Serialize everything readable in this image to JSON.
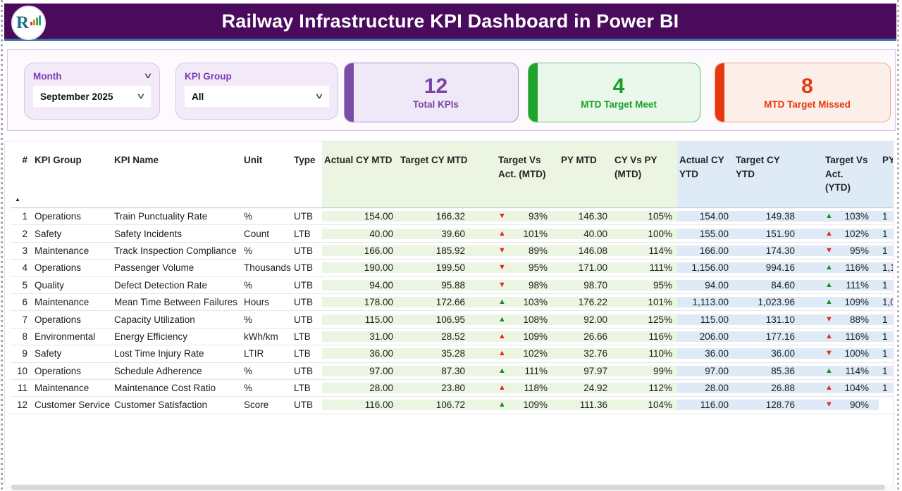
{
  "title": "Railway Infrastructure KPI Dashboard in Power BI",
  "logo": {
    "letter": "R"
  },
  "icons": {
    "sort_ascending": "▲",
    "chevron_down": "∨",
    "arrow_up": "▲",
    "arrow_down": "▼"
  },
  "colors": {
    "header_purple": "#4a0b5c",
    "accent_blue_line": "#3c6e9f",
    "slicer_label_purple": "#7a3db8",
    "card_purple": "#7a44a8",
    "card_green": "#18a124",
    "card_red": "#e8380d",
    "mtd_section_bg": "#ebf5e1",
    "ytd_section_bg": "#deebf7",
    "arrow_green": "#1d8a27",
    "arrow_red": "#e02b1d"
  },
  "filters": {
    "month": {
      "label": "Month",
      "value": "September 2025"
    },
    "kpi_group": {
      "label": "KPI Group",
      "value": "All"
    }
  },
  "cards": [
    {
      "value": "12",
      "label": "Total KPIs"
    },
    {
      "value": "4",
      "label": "MTD Target Meet"
    },
    {
      "value": "8",
      "label": "MTD Target Missed"
    }
  ],
  "table": {
    "columns": [
      "#",
      "KPI Group",
      "KPI Name",
      "Unit",
      "Type",
      "Actual CY MTD",
      "Target CY MTD",
      "Target Vs Act. (MTD)",
      "PY MTD",
      "CY Vs PY (MTD)",
      "Actual CY YTD",
      "Target CY YTD",
      "Target Vs Act. (YTD)",
      "PY"
    ],
    "rows": [
      {
        "num": "1",
        "group": "Operations",
        "name": "Train Punctuality Rate",
        "unit": "%",
        "type": "UTB",
        "actual_mtd": "154.00",
        "target_mtd": "166.32",
        "mtd_arrow": {
          "dir": "down",
          "color": "red"
        },
        "mtd_pct": "93%",
        "py_mtd": "146.30",
        "cy_vs_py": "105%",
        "actual_ytd": "154.00",
        "target_ytd": "149.38",
        "ytd_arrow": {
          "dir": "up",
          "color": "green"
        },
        "ytd_pct": "103%",
        "py_ytd_clipped": "1"
      },
      {
        "num": "2",
        "group": "Safety",
        "name": "Safety Incidents",
        "unit": "Count",
        "type": "LTB",
        "actual_mtd": "40.00",
        "target_mtd": "39.60",
        "mtd_arrow": {
          "dir": "up",
          "color": "red"
        },
        "mtd_pct": "101%",
        "py_mtd": "40.00",
        "cy_vs_py": "100%",
        "actual_ytd": "155.00",
        "target_ytd": "151.90",
        "ytd_arrow": {
          "dir": "up",
          "color": "red"
        },
        "ytd_pct": "102%",
        "py_ytd_clipped": "1"
      },
      {
        "num": "3",
        "group": "Maintenance",
        "name": "Track Inspection Compliance",
        "unit": "%",
        "type": "UTB",
        "actual_mtd": "166.00",
        "target_mtd": "185.92",
        "mtd_arrow": {
          "dir": "down",
          "color": "red"
        },
        "mtd_pct": "89%",
        "py_mtd": "146.08",
        "cy_vs_py": "114%",
        "actual_ytd": "166.00",
        "target_ytd": "174.30",
        "ytd_arrow": {
          "dir": "down",
          "color": "red"
        },
        "ytd_pct": "95%",
        "py_ytd_clipped": "1"
      },
      {
        "num": "4",
        "group": "Operations",
        "name": "Passenger Volume",
        "unit": "Thousands",
        "type": "UTB",
        "actual_mtd": "190.00",
        "target_mtd": "199.50",
        "mtd_arrow": {
          "dir": "down",
          "color": "red"
        },
        "mtd_pct": "95%",
        "py_mtd": "171.00",
        "cy_vs_py": "111%",
        "actual_ytd": "1,156.00",
        "target_ytd": "994.16",
        "ytd_arrow": {
          "dir": "up",
          "color": "green"
        },
        "ytd_pct": "116%",
        "py_ytd_clipped": "1,1"
      },
      {
        "num": "5",
        "group": "Quality",
        "name": "Defect Detection Rate",
        "unit": "%",
        "type": "UTB",
        "actual_mtd": "94.00",
        "target_mtd": "95.88",
        "mtd_arrow": {
          "dir": "down",
          "color": "red"
        },
        "mtd_pct": "98%",
        "py_mtd": "98.70",
        "cy_vs_py": "95%",
        "actual_ytd": "94.00",
        "target_ytd": "84.60",
        "ytd_arrow": {
          "dir": "up",
          "color": "green"
        },
        "ytd_pct": "111%",
        "py_ytd_clipped": "1"
      },
      {
        "num": "6",
        "group": "Maintenance",
        "name": "Mean Time Between Failures",
        "unit": "Hours",
        "type": "UTB",
        "actual_mtd": "178.00",
        "target_mtd": "172.66",
        "mtd_arrow": {
          "dir": "up",
          "color": "green"
        },
        "mtd_pct": "103%",
        "py_mtd": "176.22",
        "cy_vs_py": "101%",
        "actual_ytd": "1,113.00",
        "target_ytd": "1,023.96",
        "ytd_arrow": {
          "dir": "up",
          "color": "green"
        },
        "ytd_pct": "109%",
        "py_ytd_clipped": "1,0"
      },
      {
        "num": "7",
        "group": "Operations",
        "name": "Capacity Utilization",
        "unit": "%",
        "type": "UTB",
        "actual_mtd": "115.00",
        "target_mtd": "106.95",
        "mtd_arrow": {
          "dir": "up",
          "color": "green"
        },
        "mtd_pct": "108%",
        "py_mtd": "92.00",
        "cy_vs_py": "125%",
        "actual_ytd": "115.00",
        "target_ytd": "131.10",
        "ytd_arrow": {
          "dir": "down",
          "color": "red"
        },
        "ytd_pct": "88%",
        "py_ytd_clipped": "1"
      },
      {
        "num": "8",
        "group": "Environmental",
        "name": "Energy Efficiency",
        "unit": "kWh/km",
        "type": "LTB",
        "actual_mtd": "31.00",
        "target_mtd": "28.52",
        "mtd_arrow": {
          "dir": "up",
          "color": "red"
        },
        "mtd_pct": "109%",
        "py_mtd": "26.66",
        "cy_vs_py": "116%",
        "actual_ytd": "206.00",
        "target_ytd": "177.16",
        "ytd_arrow": {
          "dir": "up",
          "color": "red"
        },
        "ytd_pct": "116%",
        "py_ytd_clipped": "1"
      },
      {
        "num": "9",
        "group": "Safety",
        "name": "Lost Time Injury Rate",
        "unit": "LTIR",
        "type": "LTB",
        "actual_mtd": "36.00",
        "target_mtd": "35.28",
        "mtd_arrow": {
          "dir": "up",
          "color": "red"
        },
        "mtd_pct": "102%",
        "py_mtd": "32.76",
        "cy_vs_py": "110%",
        "actual_ytd": "36.00",
        "target_ytd": "36.00",
        "ytd_arrow": {
          "dir": "down",
          "color": "red"
        },
        "ytd_pct": "100%",
        "py_ytd_clipped": "1"
      },
      {
        "num": "10",
        "group": "Operations",
        "name": "Schedule Adherence",
        "unit": "%",
        "type": "UTB",
        "actual_mtd": "97.00",
        "target_mtd": "87.30",
        "mtd_arrow": {
          "dir": "up",
          "color": "green"
        },
        "mtd_pct": "111%",
        "py_mtd": "97.97",
        "cy_vs_py": "99%",
        "actual_ytd": "97.00",
        "target_ytd": "85.36",
        "ytd_arrow": {
          "dir": "up",
          "color": "green"
        },
        "ytd_pct": "114%",
        "py_ytd_clipped": "1"
      },
      {
        "num": "11",
        "group": "Maintenance",
        "name": "Maintenance Cost Ratio",
        "unit": "%",
        "type": "LTB",
        "actual_mtd": "28.00",
        "target_mtd": "23.80",
        "mtd_arrow": {
          "dir": "up",
          "color": "red"
        },
        "mtd_pct": "118%",
        "py_mtd": "24.92",
        "cy_vs_py": "112%",
        "actual_ytd": "28.00",
        "target_ytd": "26.88",
        "ytd_arrow": {
          "dir": "up",
          "color": "red"
        },
        "ytd_pct": "104%",
        "py_ytd_clipped": "1"
      },
      {
        "num": "12",
        "group": "Customer Service",
        "name": "Customer Satisfaction",
        "unit": "Score",
        "type": "UTB",
        "actual_mtd": "116.00",
        "target_mtd": "106.72",
        "mtd_arrow": {
          "dir": "up",
          "color": "green"
        },
        "mtd_pct": "109%",
        "py_mtd": "111.36",
        "cy_vs_py": "104%",
        "actual_ytd": "116.00",
        "target_ytd": "128.76",
        "ytd_arrow": {
          "dir": "down",
          "color": "red"
        },
        "ytd_pct": "90%",
        "py_ytd_clipped": ""
      }
    ]
  }
}
